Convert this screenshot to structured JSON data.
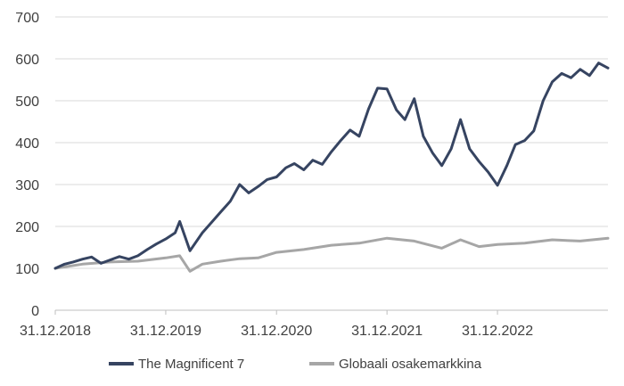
{
  "chart_data": {
    "type": "line",
    "title": "",
    "xlabel": "",
    "ylabel": "",
    "ylim": [
      0,
      700
    ],
    "y_ticks": [
      0,
      100,
      200,
      300,
      400,
      500,
      600,
      700
    ],
    "x_range": [
      "2018-12-31",
      "2023-12-31"
    ],
    "x_ticks": [
      {
        "date": "2018-12-31",
        "label": "31.12.2018"
      },
      {
        "date": "2019-12-31",
        "label": "31.12.2019"
      },
      {
        "date": "2020-12-31",
        "label": "31.12.2020"
      },
      {
        "date": "2021-12-31",
        "label": "31.12.2021"
      },
      {
        "date": "2022-12-31",
        "label": "31.12.2022"
      }
    ],
    "grid": "horizontal",
    "legend_position": "bottom",
    "series": [
      {
        "name": "The Magnificent 7",
        "color": "#364461",
        "points": [
          [
            "2018-12-31",
            100
          ],
          [
            "2019-01-31",
            110
          ],
          [
            "2019-02-28",
            115
          ],
          [
            "2019-03-31",
            122
          ],
          [
            "2019-04-30",
            127
          ],
          [
            "2019-05-31",
            112
          ],
          [
            "2019-06-30",
            120
          ],
          [
            "2019-07-31",
            128
          ],
          [
            "2019-08-31",
            122
          ],
          [
            "2019-09-30",
            130
          ],
          [
            "2019-10-31",
            145
          ],
          [
            "2019-11-30",
            158
          ],
          [
            "2019-12-31",
            170
          ],
          [
            "2020-01-31",
            185
          ],
          [
            "2020-02-15",
            212
          ],
          [
            "2020-03-20",
            142
          ],
          [
            "2020-04-30",
            185
          ],
          [
            "2020-05-31",
            210
          ],
          [
            "2020-06-30",
            235
          ],
          [
            "2020-07-31",
            260
          ],
          [
            "2020-08-31",
            300
          ],
          [
            "2020-09-30",
            280
          ],
          [
            "2020-10-31",
            295
          ],
          [
            "2020-11-30",
            312
          ],
          [
            "2020-12-31",
            318
          ],
          [
            "2021-01-31",
            340
          ],
          [
            "2021-02-28",
            350
          ],
          [
            "2021-03-31",
            335
          ],
          [
            "2021-04-30",
            358
          ],
          [
            "2021-05-31",
            348
          ],
          [
            "2021-06-30",
            378
          ],
          [
            "2021-07-31",
            405
          ],
          [
            "2021-08-31",
            430
          ],
          [
            "2021-09-30",
            415
          ],
          [
            "2021-10-31",
            480
          ],
          [
            "2021-11-30",
            530
          ],
          [
            "2021-12-31",
            528
          ],
          [
            "2022-01-31",
            478
          ],
          [
            "2022-02-28",
            455
          ],
          [
            "2022-03-31",
            505
          ],
          [
            "2022-04-30",
            415
          ],
          [
            "2022-05-31",
            375
          ],
          [
            "2022-06-30",
            345
          ],
          [
            "2022-07-31",
            385
          ],
          [
            "2022-08-31",
            455
          ],
          [
            "2022-09-30",
            385
          ],
          [
            "2022-10-31",
            355
          ],
          [
            "2022-11-30",
            330
          ],
          [
            "2022-12-31",
            298
          ],
          [
            "2023-01-31",
            345
          ],
          [
            "2023-02-28",
            395
          ],
          [
            "2023-03-31",
            405
          ],
          [
            "2023-04-30",
            428
          ],
          [
            "2023-05-31",
            500
          ],
          [
            "2023-06-30",
            545
          ],
          [
            "2023-07-31",
            565
          ],
          [
            "2023-08-31",
            555
          ],
          [
            "2023-09-30",
            575
          ],
          [
            "2023-10-31",
            560
          ],
          [
            "2023-11-30",
            590
          ],
          [
            "2023-12-31",
            578
          ]
        ]
      },
      {
        "name": "Globaali osakemarkkina",
        "color": "#a6a6a6",
        "points": [
          [
            "2018-12-31",
            100
          ],
          [
            "2019-03-31",
            110
          ],
          [
            "2019-06-30",
            115
          ],
          [
            "2019-09-30",
            117
          ],
          [
            "2019-12-31",
            125
          ],
          [
            "2020-02-15",
            130
          ],
          [
            "2020-03-20",
            93
          ],
          [
            "2020-04-30",
            110
          ],
          [
            "2020-06-30",
            117
          ],
          [
            "2020-08-31",
            123
          ],
          [
            "2020-10-31",
            125
          ],
          [
            "2020-12-31",
            138
          ],
          [
            "2021-03-31",
            145
          ],
          [
            "2021-06-30",
            155
          ],
          [
            "2021-09-30",
            160
          ],
          [
            "2021-12-31",
            172
          ],
          [
            "2022-03-31",
            165
          ],
          [
            "2022-06-30",
            148
          ],
          [
            "2022-08-31",
            168
          ],
          [
            "2022-10-31",
            152
          ],
          [
            "2022-12-31",
            157
          ],
          [
            "2023-03-31",
            160
          ],
          [
            "2023-06-30",
            168
          ],
          [
            "2023-09-30",
            165
          ],
          [
            "2023-12-31",
            172
          ]
        ]
      }
    ]
  }
}
